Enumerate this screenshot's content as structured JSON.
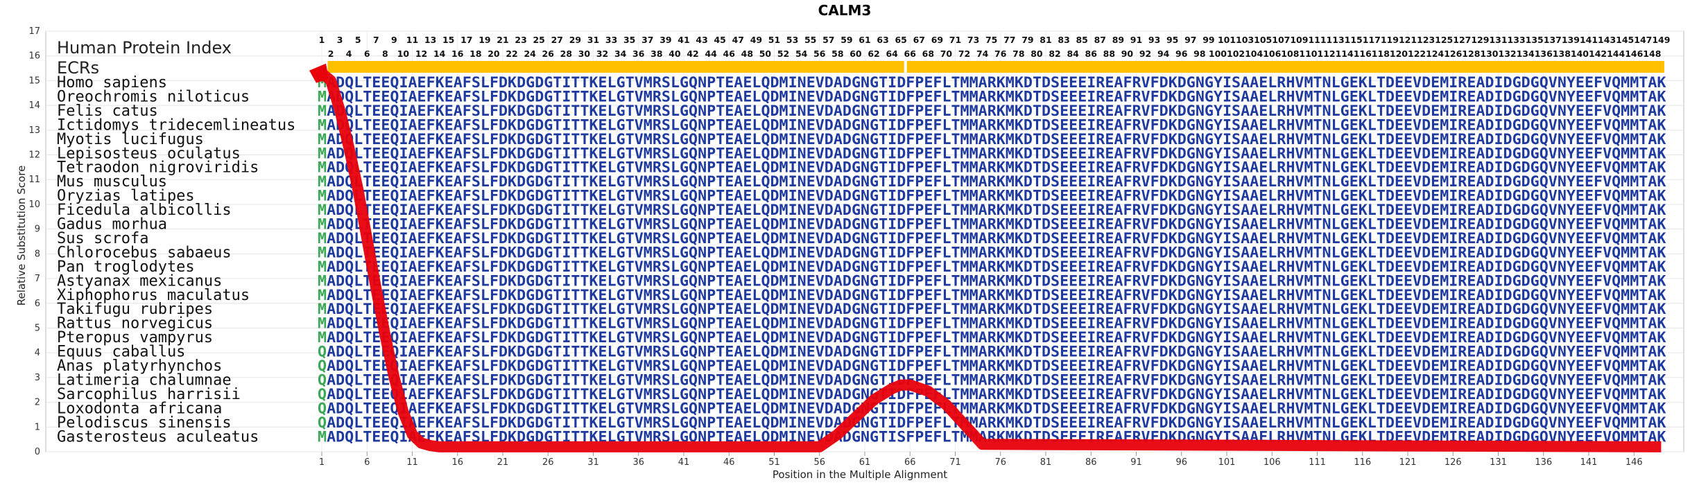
{
  "chart_data": {
    "type": "line",
    "title": "CALM3",
    "xlabel": "Position in the Multiple Alignment",
    "ylabel": "Relative Substitution Score",
    "xlim": [
      1,
      149
    ],
    "ylim": [
      0,
      17
    ],
    "yticks": [
      "0",
      "1",
      "2",
      "3",
      "4",
      "5",
      "6",
      "7",
      "8",
      "9",
      "10",
      "11",
      "12",
      "13",
      "14",
      "15",
      "16",
      "17"
    ],
    "xticks": [
      "1",
      "6",
      "11",
      "16",
      "21",
      "26",
      "31",
      "36",
      "41",
      "46",
      "51",
      "56",
      "61",
      "66",
      "71",
      "76",
      "81",
      "86",
      "91",
      "96",
      "101",
      "106",
      "111",
      "116",
      "121",
      "126",
      "131",
      "136",
      "141",
      "146"
    ],
    "grid": true,
    "header_labels": {
      "index": "Human Protein Index",
      "ecrs": "ECRs"
    },
    "position_labels_odd": [
      "1",
      "3",
      "5",
      "7",
      "9",
      "11",
      "13",
      "15",
      "17",
      "19",
      "21",
      "23",
      "25",
      "27",
      "29",
      "31",
      "33",
      "35",
      "37",
      "39",
      "41",
      "43",
      "45",
      "47",
      "49",
      "51",
      "53",
      "55",
      "57",
      "59",
      "61",
      "63",
      "65",
      "67",
      "69",
      "71",
      "73",
      "75",
      "77",
      "79",
      "81",
      "83",
      "85",
      "87",
      "89",
      "91",
      "93",
      "95",
      "97",
      "99",
      "101",
      "103",
      "105",
      "107",
      "109",
      "111",
      "113",
      "115",
      "117",
      "119",
      "121",
      "123",
      "125",
      "127",
      "129",
      "131",
      "133",
      "135",
      "137",
      "139",
      "141",
      "143",
      "145",
      "147",
      "149"
    ],
    "position_labels_even": [
      "2",
      "4",
      "6",
      "8",
      "10",
      "12",
      "14",
      "16",
      "18",
      "20",
      "22",
      "24",
      "26",
      "28",
      "30",
      "32",
      "34",
      "36",
      "38",
      "40",
      "42",
      "44",
      "46",
      "48",
      "50",
      "52",
      "54",
      "56",
      "58",
      "60",
      "62",
      "64",
      "66",
      "68",
      "70",
      "72",
      "74",
      "76",
      "78",
      "80",
      "82",
      "84",
      "86",
      "88",
      "90",
      "92",
      "94",
      "96",
      "98",
      "100",
      "102",
      "104",
      "106",
      "108",
      "110",
      "112",
      "114",
      "116",
      "118",
      "120",
      "122",
      "124",
      "126",
      "128",
      "130",
      "132",
      "134",
      "136",
      "138",
      "140",
      "142",
      "144",
      "146",
      "148"
    ],
    "ecr_segments": [
      [
        2,
        65
      ],
      [
        66,
        149
      ]
    ],
    "species": [
      "Homo sapiens",
      "Oreochromis niloticus",
      "Felis catus",
      "Ictidomys tridecemlineatus",
      "Myotis lucifugus",
      "Lepisosteus oculatus",
      "Tetraodon nigroviridis",
      "Mus musculus",
      "Oryzias latipes",
      "Ficedula albicollis",
      "Gadus morhua",
      "Sus scrofa",
      "Chlorocebus sabaeus",
      "Pan troglodytes",
      "Astyanax mexicanus",
      "Xiphophorus maculatus",
      "Takifugu rubripes",
      "Rattus norvegicus",
      "Pteropus vampyrus",
      "Equus caballus",
      "Anas platyrhynchos",
      "Latimeria chalumnae",
      "Sarcophilus harrisii",
      "Loxodonta africana",
      "Pelodiscus sinensis",
      "Gasterosteus aculeatus"
    ],
    "sequences": [
      "MADQLTEEQIAEFKEAFSLFDKDGDGTITTKELGTVMRSLGQNPTEAELQDMINEVDADGNGTIDFPEFLTMMARKMKDTDSEEEIREAFRVFDKDGNGYISAAELRHVMTNLGEKLTDEEVDEMIREADIDGDGQVNYEEFVQMMTAK",
      "MADQLTEEQIAEFKEAFSLFDKDGDGTITTKELGTVMRSLGQNPTEAELQDMINEVDADGNGTIDFPEFLTMMARKMKDTDSEEEIREAFRVFDKDGNGYISAAELRHVMTNLGEKLTDEEVDEMIREADIDGDGQVNYEEFVQMMTAK",
      "MADQLTEEQIAEFKEAFSLFDKDGDGTITTKELGTVMRSLGQNPTEAELQDMINEVDADGNGTIDFPEFLTMMARKMKDTDSEEEIREAFRVFDKDGNGYISAAELRHVMTNLGEKLTDEEVDEMIREADIDGDGQVNYEEFVQMMTAK",
      "MADQLTEEQIAEFKEAFSLFDKDGDGTITTKELGTVMRSLGQNPTEAELQDMINEVDADGNGTIDFPEFLTMMARKMKDTDSEEEIREAFRVFDKDGNGYISAAELRHVMTNLGEKLTDEEVDEMIREADIDGDGQVNYEEFVQMMTAK",
      "MADQLTEEQIAEFKEAFSLFDKDGDGTITTKELGTVMRSLGQNPTEAELQDMINEVDADGNGTIDFPEFLTMMARKMKDTDSEEEIREAFRVFDKDGNGYISAAELRHVMTNLGEKLTDEEVDEMIREADIDGDGQVNYEEFVQMMTAK",
      "MADQLTEEQIAEFKEAFSLFDKDGDGTITTKELGTVMRSLGQNPTEAELQDMINEVDADGNGTIDFPEFLTMMARKMKDTDSEEEIREAFRVFDKDGNGYISAAELRHVMTNLGEKLTDEEVDEMIREADIDGDGQVNYEEFVQMMTAK",
      "MADQLTEEQIAEFKEAFSLFDKDGDGTITTKELGTVMRSLGQNPTEAELQDMINEVDADGNGTIDFPEFLTMMARKMKDTDSEEEIREAFRVFDKDGNGYISAAELRHVMTNLGEKLTDEEVDEMIREADIDGDGQVNYEEFVQMMTAK",
      "MADQLTEEQIAEFKEAFSLFDKDGDGTITTKELGTVMRSLGQNPTEAELQDMINEVDADGNGTIDFPEFLTMMARKMKDTDSEEEIREAFRVFDKDGNGYISAAELRHVMTNLGEKLTDEEVDEMIREADIDGDGQVNYEEFVQMMTAK",
      "MADQLTEEQIAEFKEAFSLFDKDGDGTITTKELGTVMRSLGQNPTEAELQDMINEVDADGNGTIDFPEFLTMMARKMKDTDSEEEIREAFRVFDKDGNGYISAAELRHVMTNLGEKLTDEEVDEMIREADIDGDGQVNYEEFVQMMTAK",
      "MADQLTEEQIAEFKEAFSLFDKDGDGTITTKELGTVMRSLGQNPTEAELQDMINEVDADGNGTIDFPEFLTMMARKMKDTDSEEEIREAFRVFDKDGNGYISAAELRHVMTNLGEKLTDEEVDEMIREADIDGDGQVNYEEFVQMMTAK",
      "MADQLTEEQIAEFKEAFSLFDKDGDGTITTKELGTVMRSLGQNPTEAELQDMINEVDADGNGTIDFPEFLTMMARKMKDTDSEEEIREAFRVFDKDGNGYISAAELRHVMTNLGEKLTDEEVDEMIREADIDGDGQVNYEEFVQMMTAK",
      "MADQLTEEQIAEFKEAFSLFDKDGDGTITTKELGTVMRSLGQNPTEAELQDMINEVDADGNGTIDFPEFLTMMARKMKDTDSEEEIREAFRVFDKDGNGYISAAELRHVMTNLGEKLTDEEVDEMIREADIDGDGQVNYEEFVQMMTAK",
      "MADQLTEEQIAEFKEAFSLFDKDGDGTITTKELGTVMRSLGQNPTEAELQDMINEVDADGNGTIDFPEFLTMMARKMKDTDSEEEIREAFRVFDKDGNGYISAAELRHVMTNLGEKLTDEEVDEMIREADIDGDGQVNYEEFVQMMTAK",
      "MADQLTEEQIAEFKEAFSLFDKDGDGTITTKELGTVMRSLGQNPTEAELQDMINEVDADGNGTIDFPEFLTMMARKMKDTDSEEEIREAFRVFDKDGNGYISAAELRHVMTNLGEKLTDEEVDEMIREADIDGDGQVNYEEFVQMMTAK",
      "MADQLTEEQIAEFKEAFSLFDKDGDGTITTKELGTVMRSLGQNPTEAELQDMINEVDADGNGTIDFPEFLTMMARKMKDTDSEEEIREAFRVFDKDGNGYISAAELRHVMTNLGEKLTDEEVDEMIREADIDGDGQVNYEEFVQMMTAK",
      "MADQLTEEQIAEFKEAFSLFDKDGDGTITTKELGTVMRSLGQNPTEAELQDMINEVDADGNGTIDFPEFLTMMARKMKDTDSEEEIREAFRVFDKDGNGYISAAELRHVMTNLGEKLTDEEVDEMIREADIDGDGQVNYEEFVQMMTAK",
      "MADQLTEEQIAEFKEAFSLFDKDGDGTITTKELGTVMRSLGQNPTEAELQDMINEVDADGNGTIDFPEFLTMMARKMKDTDSEEEIREAFRVFDKDGNGYISAAELRHVMTNLGEKLTDEEVDEMIREADIDGDGQVNYEEFVQMMTAK",
      "MADQLTEEQIAEFKEAFSLFDKDGDGTITTKELGTVMRSLGQNPTEAELQDMINEVDADGNGTIDFPEFLTMMARKMKDTDSEEEIREAFRVFDKDGNGYISAAELRHVMTNLGEKLTDEEVDEMIREADIDGDGQVNYEEFVQMMTAK",
      "MADQLTEEQIAEFKEAFSLFDKDGDGTITTKELGTVMRSLGQNPTEAELQDMINEVDADGNGTIDFPEFLTMMARKMKDTDSEEEIREAFRVFDKDGNGYISAAELRHVMTNLGEKLTDEEVDEMIREADIDGDGQVNYEEFVQMMTAK",
      "QADQLTEEQIAEFKEAFSLFDKDGDGTITTKELGTVMRSLGQNPTEAELQDMINEVDADGNGTIDFPEFLTMMARKMKDTDSEEEIREAFRVFDKDGNGYISAAELRHVMTNLGEKLTDEEVDEMIREADIDGDGQVNYEEFVQMMTAK",
      "QADQLTEEQIAEFKEAFSLFDKDGDGTITTKELGTVMRSLGQNPTEAELQDMINEVDADGNGTIDFPEFLTMMARKMKDTDSEEEIREAFRVFDKDGNGYISAAELRHVMTNLGEKLTDEEVDEMIREADIDGDGQVNYEEFVQMMTAK",
      "QADQLTEEQIAEFKEAFSLFDKDGDGTITTKELGTVMRSLGQNPTEAELQDMINEVDADGNGTIDFPEFLTMMARKMKDTDSEEEIREAFRVFDKDGNGYISAAELRHVMTNLGEKLTDEEVDEMIREADIDGDGQVNYEEFVQMMTAK",
      "QADQLTEEQIAEFKEAFSLFDKDGDGTITTKELGTVMRSLGQNPTEAELQDMINEVDADGNGTIDFPEFLTMMARKMKDTDSEEEIREAFRVFDKDGNGYISAAELRHVMTNLGEKLTDEEVDEMIREADIDGDGQVNYEEFVQMMTAK",
      "QADQLTEEQIAEFKEAFSLFDKDGDGTITTKELGTVMRSLGQNPTEAELQDMINEVDADGNGTIDFPEFLTMMARKMKDTDSEEEIREAFRVFDKDGNGYISAAELRHVMTNLGEKLTDEEVDEMIREADIDGDGQVNYEEFVQMMTAK",
      "QADQLTEEQIAEFKEAFSLFDKDGDGTITTKELGTVMRSLGQNPTEAELQDMINEVDADGNGTIDFPEFLTMMARKMKDTDSEEEIREAFRVFDKDGNGYISAAELRHVMTNLGEKLTDEEVDEMIREADIDGDGQVNYEEFVQMMTAK",
      "MADQLTEEQIAEFKEAFSLFDKDGDGTITTKELGTVMRSLGQNPTEAELQDMINEVDADGNGTISFPEFLTMMARKMKDTDSEEEIREAFRVFDKDGNGYISAAELRHVMTNLGEKLTDEEVDEMIREADIDGDGQVNYEEFVQMMTAK"
    ],
    "series": [
      {
        "x": [
          1,
          2,
          3,
          4,
          5,
          6,
          7,
          8,
          9,
          10,
          11,
          12,
          13,
          14,
          15,
          56,
          58,
          60,
          62,
          64,
          65,
          66,
          68,
          70,
          72,
          74,
          149
        ],
        "y": [
          15.3,
          15.0,
          13.8,
          12.3,
          10.6,
          8.6,
          6.6,
          4.7,
          3.0,
          1.6,
          0.7,
          0.35,
          0.25,
          0.2,
          0.2,
          0.2,
          0.7,
          1.4,
          2.1,
          2.55,
          2.7,
          2.7,
          2.45,
          1.9,
          1.1,
          0.3,
          0.2
        ]
      }
    ],
    "colors": {
      "curve": "#e8000b",
      "ecr": "#ffc000",
      "sequence": "#1f3a9e",
      "first_residue": "#3aa856"
    }
  }
}
